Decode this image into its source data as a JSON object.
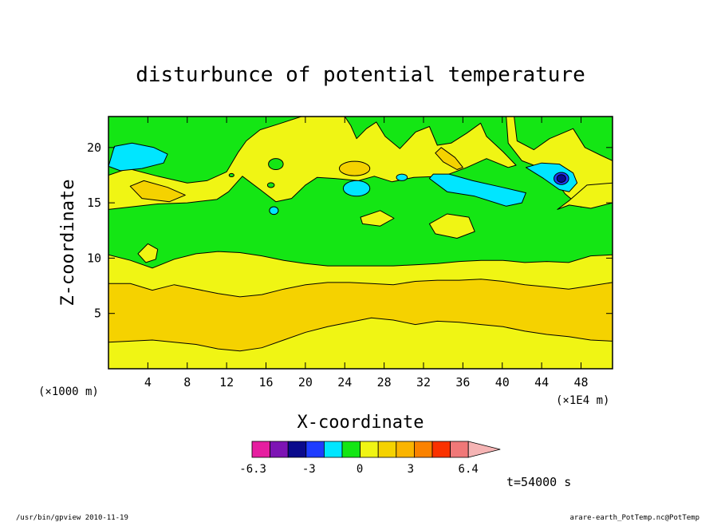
{
  "chart_data": {
    "type": "heatmap",
    "title": "disturbunce of potential temperature",
    "xlabel": "X-coordinate",
    "ylabel": "Z-coordinate",
    "x_unit": "(×1E4 m)",
    "y_unit": "(×1000 m)",
    "xlim": [
      0,
      51.2
    ],
    "ylim": [
      0,
      22.8
    ],
    "x_ticks": [
      4,
      8,
      12,
      16,
      20,
      24,
      28,
      32,
      36,
      40,
      44,
      48
    ],
    "y_ticks": [
      5,
      10,
      15,
      20
    ],
    "colorbar": {
      "labels": [
        {
          "value": -6.3,
          "text": "-6.3"
        },
        {
          "value": -3,
          "text": "-3"
        },
        {
          "value": 0,
          "text": "0"
        },
        {
          "value": 3,
          "text": "3"
        },
        {
          "value": 6.4,
          "text": "6.4"
        }
      ],
      "colors": [
        "#e61ea0",
        "#7d14b4",
        "#0a0a8c",
        "#1e3cff",
        "#00e6ff",
        "#14e614",
        "#f0f514",
        "#f5d200",
        "#fab400",
        "#fa8200",
        "#fa3200",
        "#f07878",
        "#f5b4b4"
      ]
    },
    "bands": {
      "orange_low_boundary_z": [
        2.4,
        2.5,
        2.6,
        2.4,
        2.2,
        1.8,
        1.6,
        1.9,
        2.6,
        3.3,
        3.8,
        4.2,
        4.6,
        4.4,
        4.0,
        4.3,
        4.2,
        4.0,
        3.8,
        3.4,
        3.1,
        2.9,
        2.6,
        2.5
      ],
      "orange_high_boundary_z": [
        7.7,
        7.7,
        7.1,
        7.6,
        7.2,
        6.8,
        6.5,
        6.7,
        7.2,
        7.6,
        7.8,
        7.8,
        7.7,
        7.6,
        7.9,
        8.0,
        8.0,
        8.1,
        7.9,
        7.6,
        7.4,
        7.2,
        7.5,
        7.8
      ],
      "yellow_high_boundary_z": [
        10.3,
        9.8,
        9.1,
        9.9,
        10.4,
        10.6,
        10.5,
        10.2,
        9.8,
        9.5,
        9.3,
        9.3,
        9.3,
        9.3,
        9.4,
        9.5,
        9.7,
        9.8,
        9.8,
        9.6,
        9.7,
        9.6,
        10.2,
        10.3
      ]
    },
    "time_label": "t=54000 s"
  },
  "footer": {
    "left": "/usr/bin/gpview  2010-11-19",
    "right": "arare-earth_PotTemp.nc@PotTemp"
  }
}
